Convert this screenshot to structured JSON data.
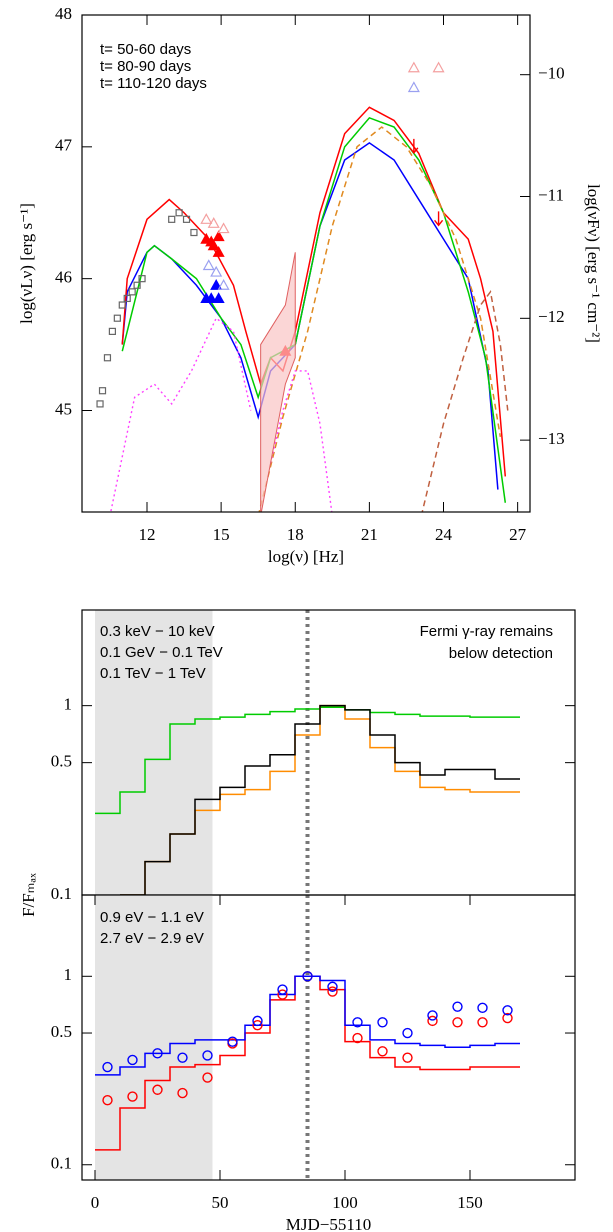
{
  "chart_data": [
    {
      "type": "line",
      "xlabel": "log(ν) [Hz]",
      "ylabel": "log(νLν) [erg s⁻¹]",
      "y2label": "log(νFν) [erg s⁻¹ cm⁻²]",
      "xlim": [
        9.37,
        27.5
      ],
      "xticks": [
        12,
        15,
        18,
        21,
        24,
        27
      ],
      "ylim": [
        44.23,
        48
      ],
      "yticks": [
        45,
        46,
        47,
        48
      ],
      "y2lim": [
        -13.59,
        -9.51
      ],
      "y2ticks": [
        {
          "value": -10,
          "label": "−10"
        },
        {
          "value": -11,
          "label": "−11"
        },
        {
          "value": -12,
          "label": "−12"
        },
        {
          "value": -13,
          "label": "−13"
        }
      ],
      "series": [
        {
          "name": "t= 50-60 days",
          "color": "#0000ff",
          "style": "line",
          "x": [
            11,
            11.2,
            12,
            12.3,
            13,
            14,
            15,
            15.8,
            16.5,
            17,
            18,
            19,
            20,
            21,
            22,
            23,
            24,
            25,
            25.8,
            26.2
          ],
          "values": [
            45.5,
            45.9,
            46.2,
            46.25,
            46.15,
            45.95,
            45.7,
            45.4,
            44.95,
            45.3,
            45.5,
            46.4,
            46.9,
            47.03,
            46.9,
            46.6,
            46.3,
            46.0,
            45.3,
            44.4
          ]
        },
        {
          "name": "t= 80-90 days",
          "color": "#ff0000",
          "style": "line",
          "x": [
            11,
            11.2,
            12,
            12.9,
            13.5,
            14.5,
            15.5,
            16,
            16.6,
            17,
            17.5,
            18,
            19,
            20,
            21,
            22,
            23,
            24,
            25,
            25.5,
            26,
            26.5
          ],
          "values": [
            45.5,
            46.0,
            46.45,
            46.6,
            46.5,
            46.3,
            45.95,
            45.6,
            45.2,
            45.4,
            45.3,
            45.6,
            46.5,
            47.1,
            47.3,
            47.2,
            46.95,
            46.5,
            46.3,
            46.0,
            45.6,
            44.5
          ]
        },
        {
          "name": "t= 110-120 days",
          "color": "#00cc00",
          "style": "line",
          "x": [
            11,
            12,
            12.3,
            13,
            14,
            15,
            15.8,
            16.5,
            17,
            18,
            19,
            20,
            21,
            22,
            23,
            24,
            25,
            25.7,
            26.5
          ],
          "values": [
            45.45,
            46.2,
            46.25,
            46.15,
            46.0,
            45.7,
            45.5,
            45.1,
            45.4,
            45.5,
            46.4,
            47.0,
            47.22,
            47.15,
            46.9,
            46.5,
            45.9,
            45.4,
            44.3
          ]
        },
        {
          "color": "#666666",
          "style": "markers",
          "marker": "square",
          "x": [
            10.1,
            10.2,
            10.4,
            10.6,
            10.8,
            11,
            11.2,
            11.4,
            11.6,
            11.8,
            13,
            13.3,
            13.6,
            13.9
          ],
          "values": [
            45.05,
            45.15,
            45.4,
            45.6,
            45.7,
            45.8,
            45.85,
            45.9,
            45.95,
            46.0,
            46.45,
            46.5,
            46.45,
            46.35
          ]
        },
        {
          "color": "#ff0000",
          "style": "markers",
          "marker": "triangle",
          "x": [
            14.4,
            14.6,
            14.7,
            14.9,
            14.9,
            17.6
          ],
          "values": [
            46.3,
            46.28,
            46.25,
            46.2,
            46.32,
            45.45
          ]
        },
        {
          "color": "#0000ff",
          "style": "markers",
          "marker": "triangle",
          "x": [
            14.4,
            14.6,
            14.9,
            14.8
          ],
          "values": [
            45.85,
            45.85,
            45.85,
            45.95
          ]
        },
        {
          "color": "#f4a0a0",
          "style": "markers",
          "marker": "triangle-open",
          "x": [
            14.4,
            14.7,
            15.1,
            22.8,
            23.8
          ],
          "values": [
            46.45,
            46.42,
            46.38,
            47.6,
            47.6
          ]
        },
        {
          "color": "#9aa0f0",
          "style": "markers",
          "marker": "triangle-open",
          "x": [
            14.5,
            14.8,
            15.1,
            22.8
          ],
          "values": [
            46.1,
            46.05,
            45.95,
            47.45
          ]
        },
        {
          "color": "#ff0000",
          "style": "markers",
          "marker": "arrow",
          "x": [
            22.8,
            23.8
          ],
          "values": [
            47.0,
            46.45
          ]
        },
        {
          "color": "#e08a20",
          "style": "dashed",
          "x": [
            16.5,
            17.5,
            18.5,
            19.5,
            20.5,
            21.5,
            22.5,
            23.5,
            24.5,
            25.5,
            26.3
          ],
          "values": [
            44.2,
            44.95,
            45.6,
            46.4,
            47.0,
            47.15,
            47.0,
            46.7,
            46.3,
            45.7,
            44.8
          ]
        },
        {
          "color": "#c06040",
          "style": "dashed",
          "x": [
            23.1,
            24,
            24.8,
            25.5,
            25.9,
            26.3,
            26.6
          ],
          "values": [
            44.2,
            44.9,
            45.4,
            45.8,
            45.9,
            45.5,
            45.0
          ]
        },
        {
          "color": "#ff40ff",
          "style": "dotted",
          "x": [
            10.5,
            11.5,
            12.3,
            13,
            13.8,
            14.8,
            15.5,
            16.2,
            null,
            17,
            17.5,
            18,
            18.5,
            19,
            19.5
          ],
          "values": [
            44.2,
            45.1,
            45.2,
            45.05,
            45.3,
            45.7,
            45.6,
            45.0,
            null,
            44.6,
            45.0,
            45.3,
            45.3,
            44.9,
            44.2
          ]
        },
        {
          "color": "#f9c4c4",
          "style": "band",
          "x": [
            16.6,
            17.6,
            18.0
          ],
          "values": [
            45.5,
            45.8,
            46.2
          ],
          "lower": [
            44.2,
            45.2,
            45.4
          ]
        }
      ]
    },
    {
      "type": "step",
      "ylog": true,
      "xlim": [
        -5.2,
        192
      ],
      "ylim": [
        0.1,
        3.2
      ],
      "yticks": [
        0.1,
        0.5,
        1
      ],
      "shade": [
        0,
        47
      ],
      "vline": 85,
      "annotations": [
        "Fermi γ-ray remains",
        "below detection"
      ],
      "annotation_color": "#ff8c00",
      "x": [
        5,
        15,
        25,
        35,
        45,
        55,
        65,
        75,
        85,
        95,
        105,
        115,
        125,
        135,
        145,
        155,
        165
      ],
      "series": [
        {
          "name": "0.3 keV − 10 keV",
          "color": "#00cc00",
          "style": "step",
          "values": [
            0.27,
            0.35,
            0.52,
            0.8,
            0.85,
            0.87,
            0.9,
            0.93,
            0.96,
            0.98,
            0.95,
            0.92,
            0.9,
            0.88,
            0.88,
            0.87,
            0.87
          ]
        },
        {
          "name": "0.1 GeV − 0.1 TeV",
          "color": "#ff8c00",
          "style": "step",
          "values": [
            null,
            0.1,
            0.15,
            0.21,
            0.28,
            0.34,
            0.36,
            0.45,
            0.7,
            1.0,
            0.85,
            0.6,
            0.45,
            0.37,
            0.36,
            0.35,
            0.35
          ]
        },
        {
          "name": "0.1 TeV − 1 TeV",
          "color": "#000000",
          "style": "step",
          "values": [
            null,
            0.1,
            0.15,
            0.21,
            0.32,
            0.37,
            0.48,
            0.55,
            0.8,
            1.0,
            0.95,
            0.7,
            0.5,
            0.43,
            0.46,
            0.46,
            0.41
          ]
        }
      ]
    },
    {
      "type": "step",
      "ylog": true,
      "xlabel": "MJD−55110",
      "ylabel": "F/Fₘₐₓ",
      "xlim": [
        -5.2,
        192
      ],
      "xticks": [
        0,
        50,
        100,
        150
      ],
      "ylim": [
        0.083,
        2.7
      ],
      "yticks": [
        0.1,
        0.5,
        1
      ],
      "shade": [
        0,
        47
      ],
      "vline": 85,
      "x": [
        5,
        15,
        25,
        35,
        45,
        55,
        65,
        75,
        85,
        95,
        105,
        115,
        125,
        135,
        145,
        155,
        165
      ],
      "series": [
        {
          "name": "0.9 eV − 1.1 eV",
          "color": "#ff0000",
          "style": "step",
          "values": [
            0.12,
            0.2,
            0.28,
            0.33,
            0.34,
            0.38,
            0.5,
            0.75,
            1.0,
            0.85,
            0.45,
            0.37,
            0.33,
            0.32,
            0.32,
            0.33,
            0.33
          ]
        },
        {
          "name": "2.7 eV − 2.9 eV",
          "color": "#0000ff",
          "style": "step",
          "values": [
            0.3,
            0.33,
            0.39,
            0.44,
            0.46,
            0.46,
            0.55,
            0.8,
            1.0,
            0.95,
            0.55,
            0.46,
            0.44,
            0.43,
            0.42,
            0.43,
            0.44
          ]
        },
        {
          "color": "#ff0000",
          "style": "markers",
          "marker": "circle",
          "values": [
            0.22,
            0.23,
            0.25,
            0.24,
            0.29,
            0.44,
            0.55,
            0.8,
            1.0,
            0.83,
            0.47,
            0.4,
            0.37,
            0.58,
            0.57,
            0.57,
            0.6
          ]
        },
        {
          "color": "#0000ff",
          "style": "markers",
          "marker": "circle",
          "values": [
            0.33,
            0.36,
            0.39,
            0.37,
            0.38,
            0.45,
            0.58,
            0.85,
            1.0,
            0.88,
            0.57,
            0.57,
            0.5,
            0.62,
            0.69,
            0.68,
            0.66
          ]
        }
      ]
    }
  ]
}
